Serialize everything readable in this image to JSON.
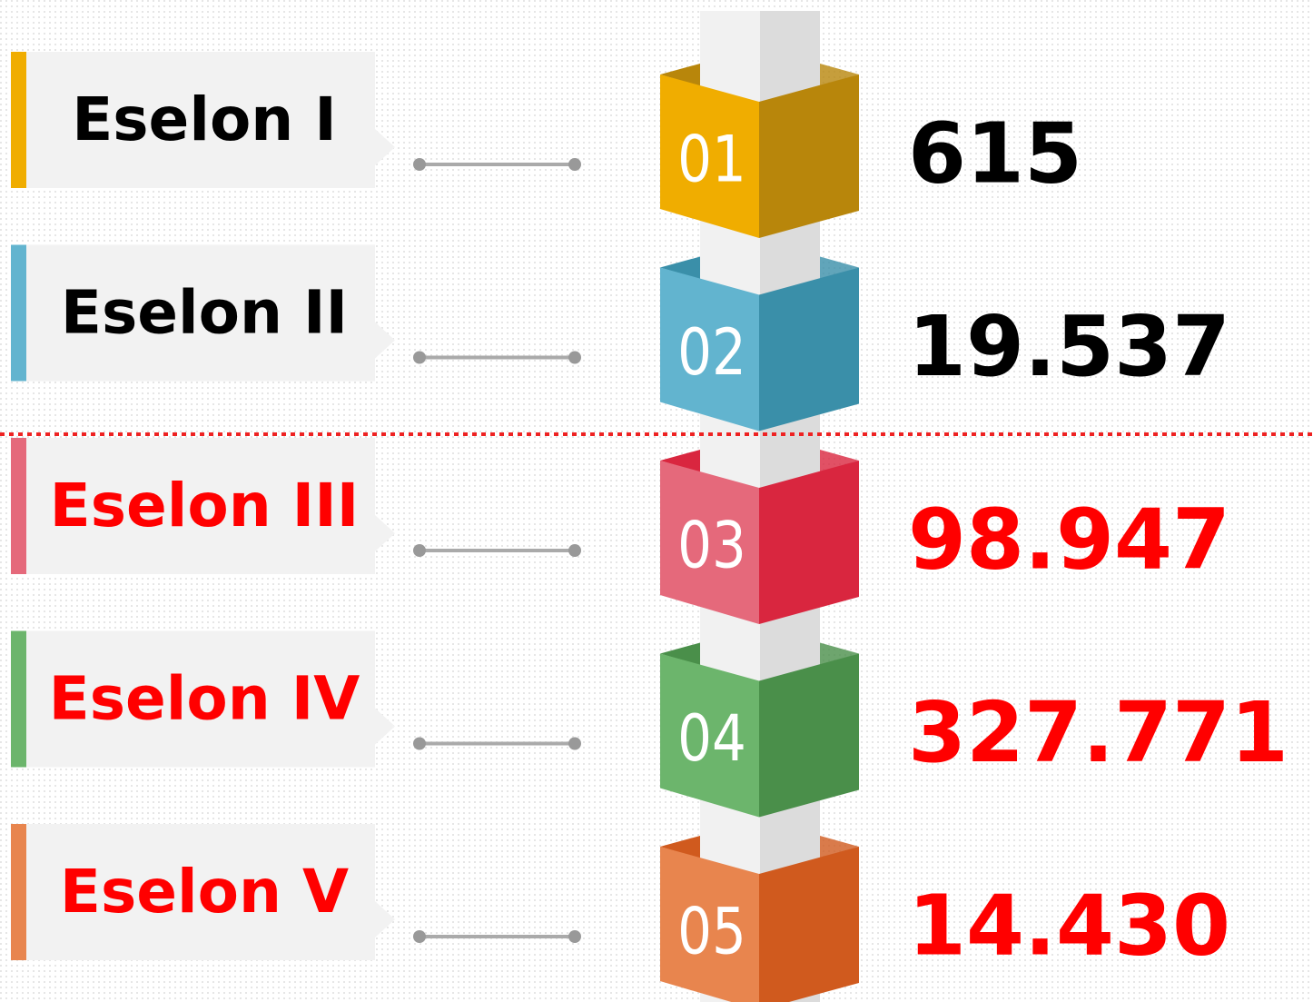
{
  "items": [
    {
      "number": "01",
      "label": "Eselon I",
      "value": "615",
      "color": "#f0ad00",
      "shade": "#b8860b",
      "text_color": "#000000"
    },
    {
      "number": "02",
      "label": "Eselon II",
      "value": "19.537",
      "color": "#62b4cf",
      "shade": "#3a8fa9",
      "text_color": "#000000"
    },
    {
      "number": "03",
      "label": "Eselon III",
      "value": "98.947",
      "color": "#e5697b",
      "shade": "#d9263f",
      "text_color": "#ff0000"
    },
    {
      "number": "04",
      "label": "Eselon IV",
      "value": "327.771",
      "color": "#6cb56c",
      "shade": "#4a8f4a",
      "text_color": "#ff0000"
    },
    {
      "number": "05",
      "label": "Eselon V",
      "value": "14.430",
      "color": "#e8854e",
      "shade": "#d05a1e",
      "text_color": "#ff0000"
    }
  ]
}
